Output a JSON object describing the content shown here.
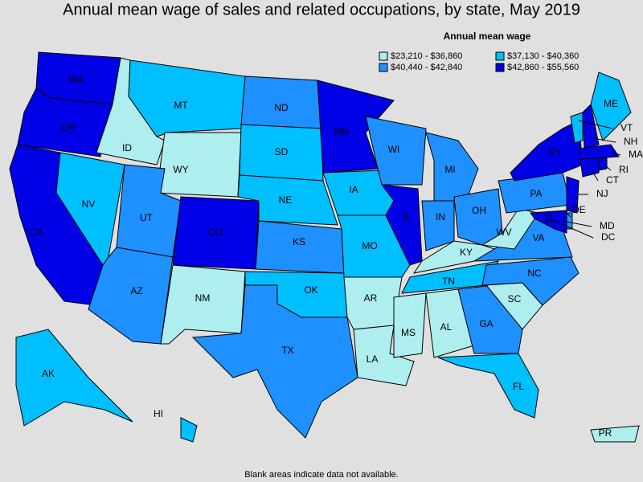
{
  "title": "Annual mean wage of sales and related occupations, by state, May 2019",
  "legend": {
    "title": "Annual mean wage",
    "items": [
      {
        "label": "$23,210 - $36,860",
        "color": "#aeeeee"
      },
      {
        "label": "$37,130 - $40,360",
        "color": "#00bfff"
      },
      {
        "label": "$40,440 - $42,840",
        "color": "#1e90ff"
      },
      {
        "label": "$42,860 - $55,560",
        "color": "#0000e6"
      }
    ]
  },
  "states": [
    {
      "name": "WA",
      "class": 3
    },
    {
      "name": "OR",
      "class": 3
    },
    {
      "name": "CA",
      "class": 3
    },
    {
      "name": "ID",
      "class": 0
    },
    {
      "name": "NV",
      "class": 1
    },
    {
      "name": "MT",
      "class": 1
    },
    {
      "name": "WY",
      "class": 0
    },
    {
      "name": "UT",
      "class": 2
    },
    {
      "name": "AZ",
      "class": 2
    },
    {
      "name": "CO",
      "class": 3
    },
    {
      "name": "NM",
      "class": 0
    },
    {
      "name": "ND",
      "class": 2
    },
    {
      "name": "SD",
      "class": 1
    },
    {
      "name": "NE",
      "class": 1
    },
    {
      "name": "KS",
      "class": 2
    },
    {
      "name": "OK",
      "class": 1
    },
    {
      "name": "TX",
      "class": 2
    },
    {
      "name": "MN",
      "class": 3
    },
    {
      "name": "IA",
      "class": 1
    },
    {
      "name": "MO",
      "class": 1
    },
    {
      "name": "AR",
      "class": 0
    },
    {
      "name": "LA",
      "class": 0
    },
    {
      "name": "WI",
      "class": 2
    },
    {
      "name": "IL",
      "class": 3
    },
    {
      "name": "MI",
      "class": 2
    },
    {
      "name": "IN",
      "class": 2
    },
    {
      "name": "OH",
      "class": 2
    },
    {
      "name": "KY",
      "class": 0
    },
    {
      "name": "TN",
      "class": 1
    },
    {
      "name": "MS",
      "class": 0
    },
    {
      "name": "AL",
      "class": 0
    },
    {
      "name": "GA",
      "class": 2
    },
    {
      "name": "FL",
      "class": 1
    },
    {
      "name": "SC",
      "class": 0
    },
    {
      "name": "NC",
      "class": 2
    },
    {
      "name": "VA",
      "class": 2
    },
    {
      "name": "WV",
      "class": 0
    },
    {
      "name": "PA",
      "class": 2
    },
    {
      "name": "NY",
      "class": 3
    },
    {
      "name": "VT",
      "class": 1
    },
    {
      "name": "NH",
      "class": 3
    },
    {
      "name": "ME",
      "class": 1
    },
    {
      "name": "MA",
      "class": 3
    },
    {
      "name": "CT",
      "class": 3
    },
    {
      "name": "RI",
      "class": 3
    },
    {
      "name": "NJ",
      "class": 3
    },
    {
      "name": "DE",
      "class": 2
    },
    {
      "name": "MD",
      "class": 3
    },
    {
      "name": "DC",
      "class": 3
    },
    {
      "name": "AK",
      "class": 1
    },
    {
      "name": "HI",
      "class": 1
    },
    {
      "name": "PR",
      "class": 0
    }
  ],
  "footnote": "Blank areas indicate data not available."
}
